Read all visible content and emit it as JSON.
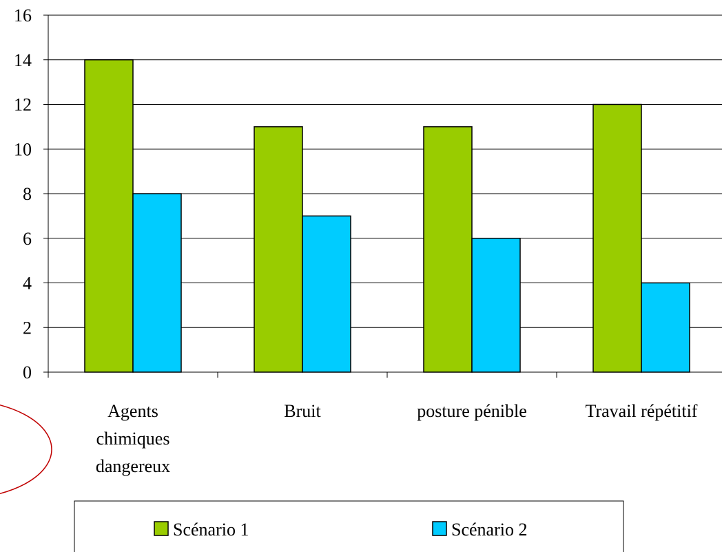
{
  "chart_data": {
    "type": "bar",
    "categories": [
      "Agents chimiques dangereux",
      "Bruit",
      "posture pénible",
      "Travail répétitif"
    ],
    "series": [
      {
        "name": "Scénario 1",
        "color": "#99cc00",
        "values": [
          14,
          11,
          11,
          12
        ]
      },
      {
        "name": "Scénario 2",
        "color": "#00ccff",
        "values": [
          8,
          7,
          6,
          4
        ]
      }
    ],
    "ylim": [
      0,
      16
    ],
    "yticks": [
      0,
      2,
      4,
      6,
      8,
      10,
      12,
      14,
      16
    ],
    "grid": true,
    "legend": "bottom"
  }
}
